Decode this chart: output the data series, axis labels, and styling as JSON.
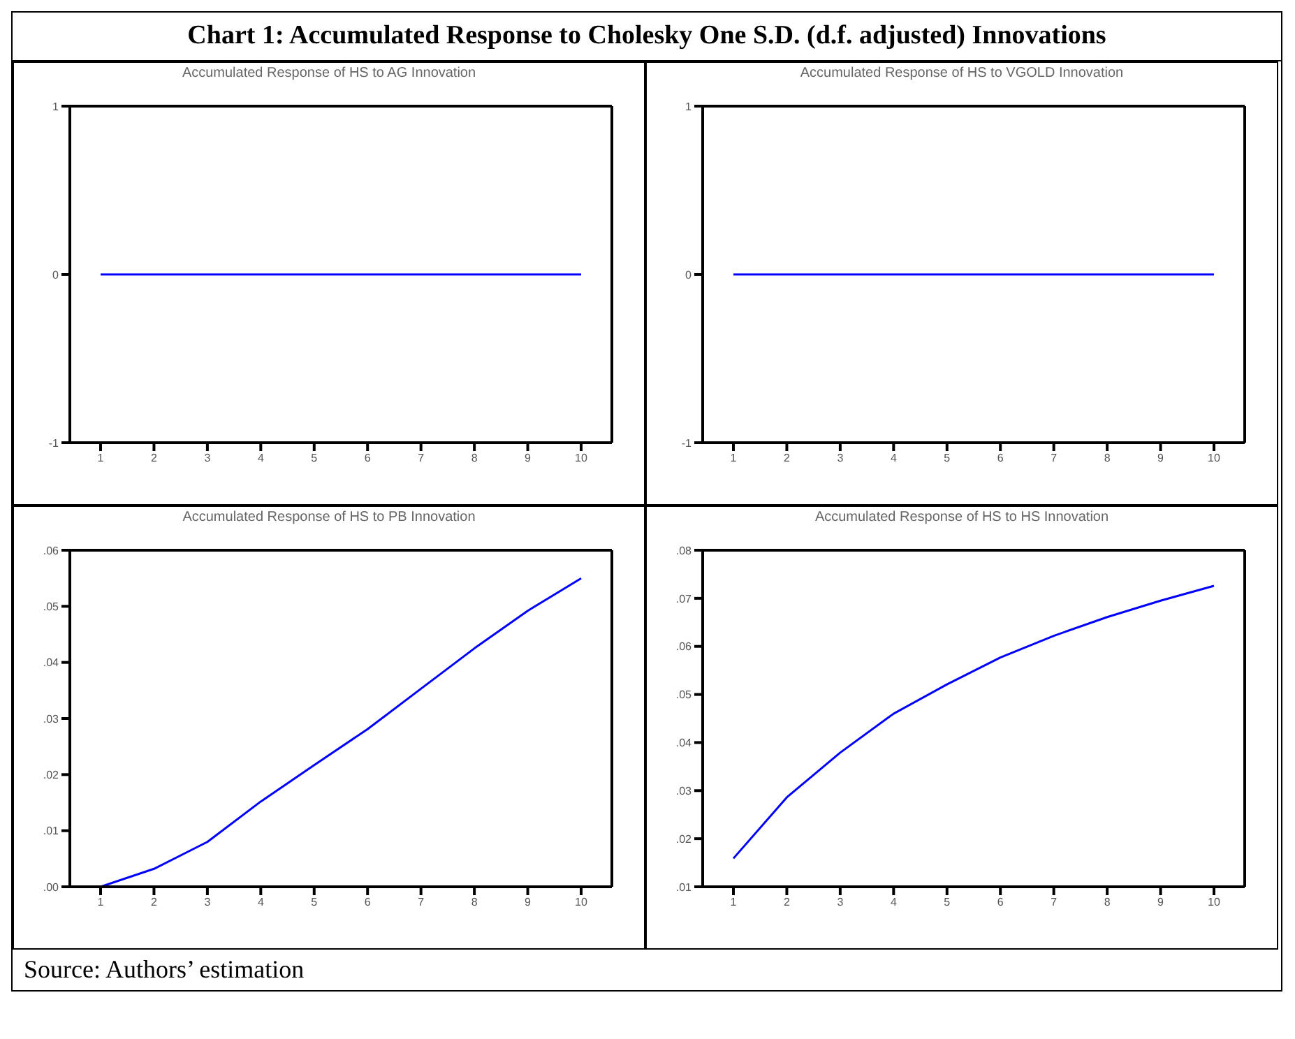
{
  "chart_data": [
    {
      "type": "other",
      "title": "Chart 1: Accumulated Response to Cholesky One S.D. (d.f. adjusted) Innovations",
      "annotations": [
        "Source: Authors’ estimation"
      ]
    },
    {
      "type": "line",
      "title": "Accumulated Response of HS to AG Innovation",
      "categories": [
        "1",
        "2",
        "3",
        "4",
        "5",
        "6",
        "7",
        "8",
        "9",
        "10"
      ],
      "series": [
        {
          "color": "#0000ff",
          "values": [
            0,
            0,
            0,
            0,
            0,
            0,
            0,
            0,
            0,
            0
          ]
        }
      ],
      "ylim": [
        -1,
        1
      ],
      "yticks": [
        -1,
        0,
        1
      ]
    },
    {
      "type": "line",
      "title": "Accumulated Response of HS to VGOLD Innovation",
      "categories": [
        "1",
        "2",
        "3",
        "4",
        "5",
        "6",
        "7",
        "8",
        "9",
        "10"
      ],
      "series": [
        {
          "color": "#0000ff",
          "values": [
            0,
            0,
            0,
            0,
            0,
            0,
            0,
            0,
            0,
            0
          ]
        }
      ],
      "ylim": [
        -1,
        1
      ],
      "yticks": [
        -1,
        0,
        1
      ]
    },
    {
      "type": "line",
      "title": "Accumulated Response of HS to PB Innovation",
      "categories": [
        "1",
        "2",
        "3",
        "4",
        "5",
        "6",
        "7",
        "8",
        "9",
        "10"
      ],
      "series": [
        {
          "color": "#0000ff",
          "values": [
            0.0,
            0.0032,
            0.008,
            0.0152,
            0.0217,
            0.0281,
            0.0353,
            0.0425,
            0.0492,
            0.055
          ]
        }
      ],
      "ylim": [
        0,
        0.06
      ],
      "yticks": [
        {
          "value": 0,
          "label": ".00"
        },
        {
          "value": 0.01,
          "label": ".01"
        },
        {
          "value": 0.02,
          "label": ".02"
        },
        {
          "value": 0.03,
          "label": ".03"
        },
        {
          "value": 0.04,
          "label": ".04"
        },
        {
          "value": 0.05,
          "label": ".05"
        },
        {
          "value": 0.06,
          "label": ".06"
        }
      ]
    },
    {
      "type": "line",
      "title": "Accumulated Response of HS to HS Innovation",
      "categories": [
        "1",
        "2",
        "3",
        "4",
        "5",
        "6",
        "7",
        "8",
        "9",
        "10"
      ],
      "series": [
        {
          "color": "#0000ff",
          "values": [
            0.0159,
            0.0286,
            0.0379,
            0.046,
            0.0521,
            0.0577,
            0.0622,
            0.0661,
            0.0695,
            0.0726
          ]
        }
      ],
      "ylim": [
        0.01,
        0.08
      ],
      "yticks": [
        {
          "value": 0.01,
          "label": ".01"
        },
        {
          "value": 0.02,
          "label": ".02"
        },
        {
          "value": 0.03,
          "label": ".03"
        },
        {
          "value": 0.04,
          "label": ".04"
        },
        {
          "value": 0.05,
          "label": ".05"
        },
        {
          "value": 0.06,
          "label": ".06"
        },
        {
          "value": 0.07,
          "label": ".07"
        },
        {
          "value": 0.08,
          "label": ".08"
        }
      ]
    }
  ]
}
